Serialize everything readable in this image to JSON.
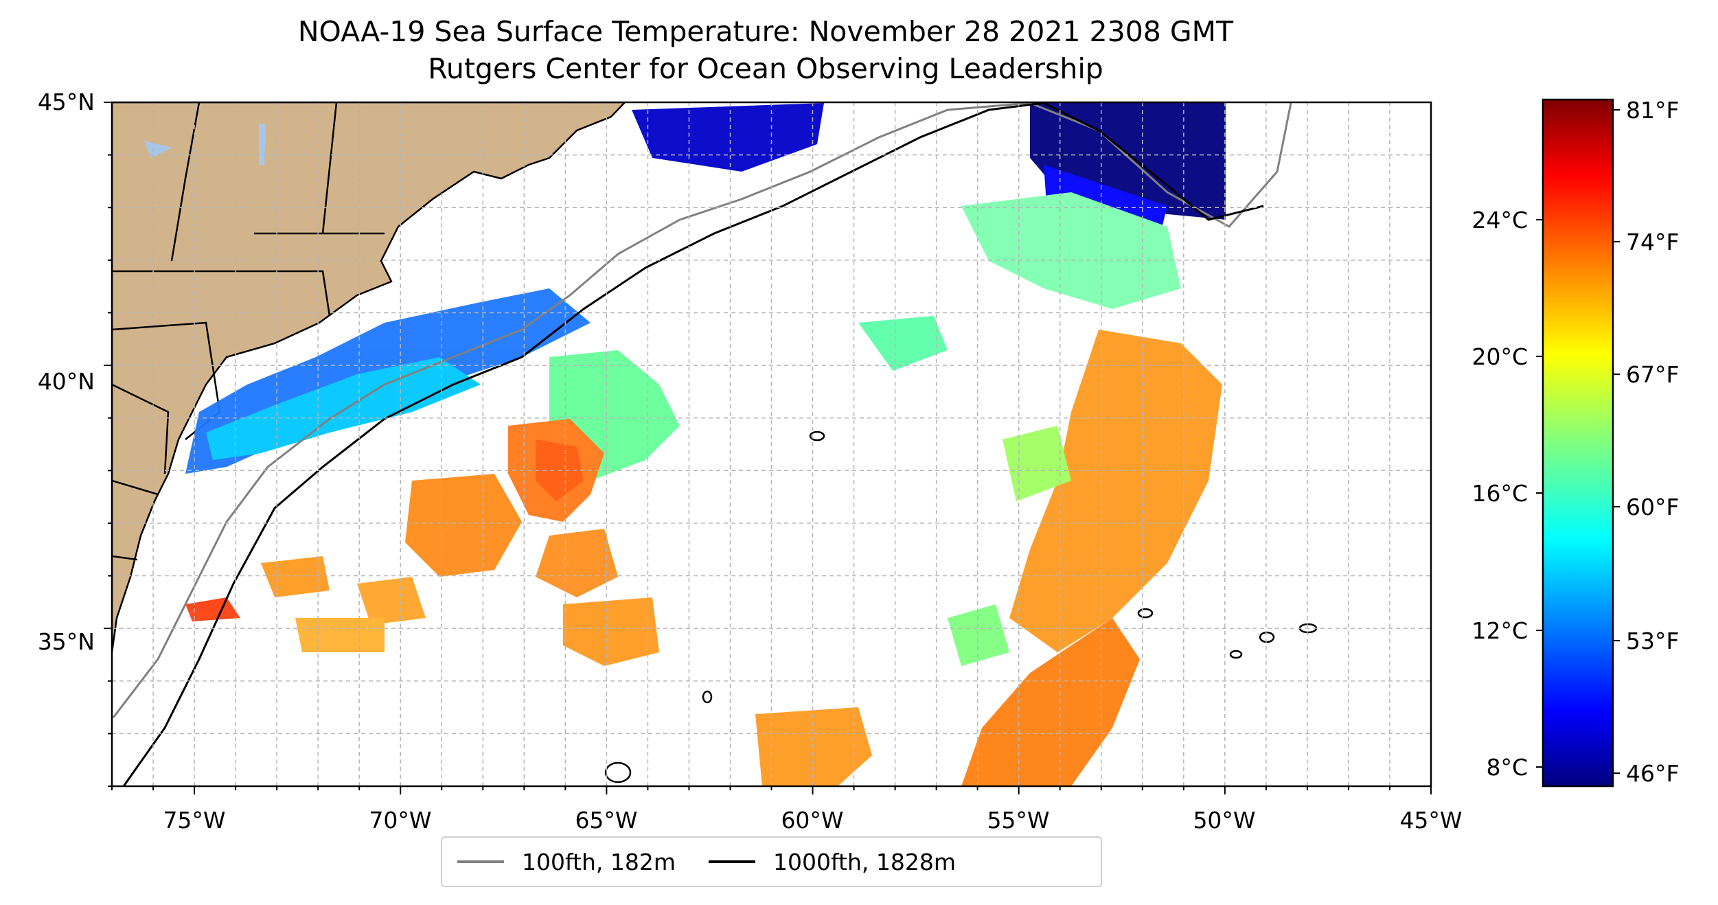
{
  "title_line1": "NOAA-19 Sea Surface Temperature: November 28 2021 2308 GMT",
  "title_line2": "Rutgers Center for Ocean Observing Leadership",
  "map": {
    "lon_range": [
      -77,
      -45
    ],
    "lat_range": [
      32,
      45
    ],
    "lon_tick_labels": [
      "75°W",
      "70°W",
      "65°W",
      "60°W",
      "55°W",
      "50°W",
      "45°W"
    ],
    "lat_tick_labels": [
      "35°N",
      "40°N",
      "45°N"
    ],
    "gridlines": true,
    "land_color": "#d2b48c",
    "lake_color": "#a6c7ea",
    "colors": {
      "isobath_100fth": "#808080",
      "isobath_1000fth": "#000000"
    }
  },
  "colorbar": {
    "colormap": "jet",
    "celsius_labels": [
      "24°C",
      "20°C",
      "16°C",
      "12°C",
      "8°C"
    ],
    "fahrenheit_labels": [
      "81°F",
      "74°F",
      "67°F",
      "60°F",
      "53°F",
      "46°F"
    ]
  },
  "legend": {
    "items": [
      {
        "label": "100fth, 182m",
        "color": "#808080"
      },
      {
        "label": "1000fth, 1828m",
        "color": "#000000"
      }
    ]
  }
}
